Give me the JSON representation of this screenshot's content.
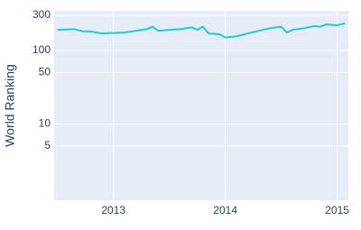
{
  "chart_data": {
    "type": "line",
    "y_label": "World Ranking",
    "x": [
      2012.5,
      2012.58,
      2012.65,
      2012.72,
      2012.8,
      2012.9,
      2013.0,
      2013.1,
      2013.2,
      2013.3,
      2013.35,
      2013.4,
      2013.5,
      2013.6,
      2013.7,
      2013.75,
      2013.8,
      2013.85,
      2013.9,
      2013.95,
      2014.0,
      2014.1,
      2014.2,
      2014.3,
      2014.4,
      2014.5,
      2014.55,
      2014.6,
      2014.7,
      2014.8,
      2014.85,
      2014.9,
      2015.0,
      2015.07
    ],
    "values": [
      190,
      192,
      195,
      182,
      180,
      170,
      172,
      175,
      185,
      195,
      210,
      185,
      190,
      195,
      205,
      190,
      210,
      170,
      168,
      165,
      150,
      155,
      170,
      185,
      200,
      210,
      175,
      190,
      200,
      214,
      210,
      225,
      220,
      233
    ],
    "color": "#1ccfc9",
    "xlim": [
      2012.47,
      2015.1
    ],
    "xticks": [
      2013,
      2014,
      2015
    ],
    "ylim": [
      0.92,
      345
    ],
    "yticks": [
      5,
      10,
      50,
      100,
      300
    ],
    "log_y": true,
    "grid": true
  }
}
